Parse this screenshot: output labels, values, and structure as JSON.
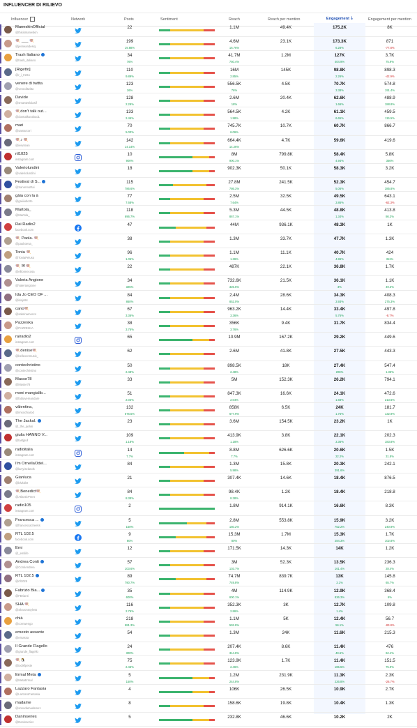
{
  "title": "INFLUENCER DI RILIEVO",
  "headers": {
    "influencer": "Influencer",
    "network": "Network",
    "posts": "Posts",
    "sentiment": "Sentiment",
    "reach": "Reach",
    "reach_per_mention": "Reach per mention",
    "engagement": "Engagement",
    "engagement_per_mention": "Engagement per mention"
  },
  "colors": {
    "positive": "#3cb46e",
    "neutral": "#f2c230",
    "negative": "#e5534b",
    "accent": "#1e4fb4",
    "up": "#1fa35a",
    "down": "#d03030"
  },
  "sort_indicator": "arrow-down-icon",
  "rows": [
    {
      "name": "ManeskinOfficial",
      "handle": "@thisismaneskin",
      "network": "twitter",
      "posts": "22",
      "posts_delta": "",
      "reach": "1.1M",
      "reach_delta": "",
      "rpm": "49.4K",
      "eng": "175.2K",
      "eng_delta": "",
      "epm": "8K",
      "epm_delta": "",
      "sent": [
        0.2,
        0.6,
        0.2
      ]
    },
    {
      "name": "🍭 ___ 🍭",
      "handle": "@jeimeandesiq",
      "network": "twitter",
      "posts": "199",
      "posts_delta": "19.88%",
      "reach": "4.6M",
      "reach_delta": "16.76%",
      "rpm": "23.1K",
      "eng": "173.3K",
      "eng_delta": "6.28%",
      "epm": "871",
      "epm_delta": "-77.8%",
      "sent": [
        0.2,
        0.6,
        0.2
      ]
    },
    {
      "name": "Trash Italiano",
      "handle": "@trash_italiano",
      "network": "twitter",
      "verified": true,
      "posts": "34",
      "posts_delta": "76%",
      "reach": "41.7M",
      "reach_delta": "750.4%",
      "rpm": "1.2M",
      "eng": "127K",
      "eng_delta": "404.9%",
      "epm": "3.7K",
      "epm_delta": "75.9%",
      "sent": [
        0.2,
        0.6,
        0.2
      ]
    },
    {
      "name": "[Rigetto]",
      "handle": "@r_i_tretto",
      "network": "twitter",
      "posts": "110",
      "posts_delta": "9.89%",
      "reach": "16M",
      "reach_delta": "2.85%",
      "rpm": "145K",
      "eng": "98.8K",
      "eng_delta": "2.26%",
      "epm": "898.3",
      "epm_delta": "-42.9%",
      "sent": [
        0.2,
        0.6,
        0.2
      ]
    },
    {
      "name": "venere di twitta",
      "handle": "@veneditwitta",
      "network": "twitter",
      "posts": "123",
      "posts_delta": "16%",
      "reach": "556.5K",
      "reach_delta": "76%",
      "rpm": "4.5K",
      "eng": "70.7K",
      "eng_delta": "3.38%",
      "epm": "574.8",
      "epm_delta": "191.4%",
      "sent": [
        0.2,
        0.6,
        0.2
      ]
    },
    {
      "name": "Davide",
      "handle": "@smartDelulasif",
      "network": "twitter",
      "posts": "128",
      "posts_delta": "2.29%",
      "reach": "2.6M",
      "reach_delta": "18%",
      "rpm": "20.4K",
      "eng": "62.6K",
      "eng_delta": "1.66%",
      "epm": "488.9",
      "epm_delta": "188.8%",
      "sent": [
        0.2,
        0.6,
        0.2
      ]
    },
    {
      "name": "🍭don't talk out...",
      "handle": "@donttalkoutloud1",
      "network": "twitter",
      "posts": "133",
      "posts_delta": "2.46%",
      "reach": "564.5K",
      "reach_delta": "1.98%",
      "rpm": "4.2K",
      "eng": "61.1K",
      "eng_delta": "6.65%",
      "epm": "459.5",
      "epm_delta": "115.5%",
      "sent": [
        0.2,
        0.6,
        0.2
      ]
    },
    {
      "name": "mari",
      "handle": "@samarcori",
      "network": "twitter",
      "posts": "70",
      "posts_delta": "5.00%",
      "reach": "745.7K",
      "reach_delta": "6.06%",
      "rpm": "10.7K",
      "eng": "60.7K",
      "eng_delta": "",
      "epm": "866.7",
      "epm_delta": "",
      "sent": [
        0.2,
        0.6,
        0.2
      ]
    },
    {
      "name": "🍭♪ 🍭",
      "handle": "@ieiwzean",
      "network": "twitter",
      "posts": "142",
      "posts_delta": "14.14%",
      "reach": "664.4K",
      "reach_delta": "14.26%",
      "rpm": "4.7K",
      "eng": "59.6K",
      "eng_delta": "",
      "epm": "419.6",
      "epm_delta": "",
      "sent": [
        0.2,
        0.6,
        0.2
      ]
    },
    {
      "name": "rtl1025",
      "handle": "instagram.com",
      "network": "instagram",
      "posts": "10",
      "posts_delta": "900%",
      "reach": "8M",
      "reach_delta": "900.1%",
      "rpm": "799.8K",
      "eng": "58.4K",
      "eng_delta": "4.94%",
      "epm": "5.8K",
      "epm_delta": "356%",
      "sent": [
        0.6,
        0.3,
        0.1
      ]
    },
    {
      "name": "Valeriolundini",
      "handle": "@valeriolundini",
      "network": "twitter",
      "posts": "18",
      "posts_delta": "",
      "reach": "902.3K",
      "reach_delta": "",
      "rpm": "50.1K",
      "eng": "58.3K",
      "eng_delta": "",
      "epm": "3.2K",
      "epm_delta": "",
      "sent": [
        0.6,
        0.3,
        0.1
      ]
    },
    {
      "name": "Festival di S...",
      "handle": "@SanremoRai",
      "network": "twitter",
      "verified": true,
      "posts": "115",
      "posts_delta": "786.6%",
      "reach": "27.8M",
      "reach_delta": "786.3%",
      "rpm": "241.5K",
      "eng": "52.3K",
      "eng_delta": "5.06%",
      "epm": "454.7",
      "epm_delta": "385.8%",
      "sent": [
        0.25,
        0.6,
        0.15
      ]
    },
    {
      "name": "gàia con la à",
      "handle": "@gaiiiiuborto",
      "network": "twitter",
      "posts": "77",
      "posts_delta": "7.68%",
      "reach": "2.5M",
      "reach_delta": "7.64%",
      "rpm": "32.5K",
      "eng": "49.5K",
      "eng_delta": "3.86%",
      "epm": "643.1",
      "epm_delta": "-62.3%",
      "sent": [
        0.2,
        0.6,
        0.2
      ]
    },
    {
      "name": "Martola_",
      "handle": "@Martola_",
      "network": "twitter",
      "posts": "118",
      "posts_delta": "696.7%",
      "reach": "5.3M",
      "reach_delta": "867.1%",
      "rpm": "44.5K",
      "eng": "48.8K",
      "eng_delta": "1.34%",
      "epm": "413.8",
      "epm_delta": "86.3%",
      "sent": [
        0.2,
        0.6,
        0.2
      ]
    },
    {
      "name": "Rai Radio2",
      "handle": "facebook.com",
      "network": "facebook",
      "posts": "47",
      "posts_delta": "",
      "reach": "44M",
      "reach_delta": "",
      "rpm": "936.1K",
      "eng": "48.3K",
      "eng_delta": "",
      "epm": "1K",
      "epm_delta": "",
      "sent": [
        0.3,
        0.55,
        0.15
      ]
    },
    {
      "name": "🍭 Paola. 🍭",
      "handle": "@paoboena_",
      "network": "twitter",
      "posts": "38",
      "posts_delta": "",
      "reach": "1.3M",
      "reach_delta": "",
      "rpm": "33.7K",
      "eng": "47.7K",
      "eng_delta": "",
      "epm": "1.3K",
      "epm_delta": "",
      "sent": [
        0.2,
        0.6,
        0.2
      ]
    },
    {
      "name": "Tonia 🍭",
      "handle": "@ToniaPeluso",
      "network": "twitter",
      "posts": "96",
      "posts_delta": "1.05%",
      "reach": "1.1M",
      "reach_delta": "1.36%",
      "rpm": "11.1K",
      "eng": "40.7K",
      "eng_delta": "4.96%",
      "epm": "424",
      "epm_delta": "311%",
      "sent": [
        0.2,
        0.6,
        0.2
      ]
    },
    {
      "name": "🍭 ✉ 🍭",
      "handle": "@ellionnecosa",
      "network": "twitter",
      "posts": "22",
      "posts_delta": "",
      "reach": "487K",
      "reach_delta": "",
      "rpm": "22.1K",
      "eng": "36.8K",
      "eng_delta": "",
      "epm": "1.7K",
      "epm_delta": "",
      "sent": [
        0.2,
        0.6,
        0.2
      ]
    },
    {
      "name": "Valeria Angione",
      "handle": "@Valeriangione",
      "network": "twitter",
      "posts": "34",
      "posts_delta": "325%",
      "reach": "732.6K",
      "reach_delta": "325.6%",
      "rpm": "21.5K",
      "eng": "36.1K",
      "eng_delta": "3%",
      "epm": "1.1K",
      "epm_delta": "49.3%",
      "sent": [
        0.2,
        0.6,
        0.2
      ]
    },
    {
      "name": "Ida Jo CEO OF ...",
      "handle": "@idajo94",
      "network": "twitter",
      "posts": "84",
      "posts_delta": "860%",
      "reach": "2.4M",
      "reach_delta": "852.0%",
      "rpm": "28.6K",
      "eng": "34.3K",
      "eng_delta": "3.93%",
      "epm": "408.3",
      "epm_delta": "275.3%",
      "sent": [
        0.2,
        0.6,
        0.2
      ]
    },
    {
      "name": "cano🍭",
      "handle": "@sabrinamocco",
      "network": "twitter",
      "posts": "67",
      "posts_delta": "3.36%",
      "reach": "963.2K",
      "reach_delta": "3.36%",
      "rpm": "14.4K",
      "eng": "33.4K",
      "eng_delta": "5.76%",
      "epm": "497.8",
      "epm_delta": "-8.7%",
      "sent": [
        0.2,
        0.6,
        0.2
      ]
    },
    {
      "name": "Pazzeska",
      "handle": "@PAZZESKA",
      "network": "twitter",
      "posts": "38",
      "posts_delta": "3.76%",
      "reach": "356K",
      "reach_delta": "3.76%",
      "rpm": "9.4K",
      "eng": "31.7K",
      "eng_delta": "",
      "epm": "834.4",
      "epm_delta": "",
      "sent": [
        0.2,
        0.6,
        0.2
      ]
    },
    {
      "name": "rairadio2",
      "handle": "instagram.com",
      "network": "instagram",
      "posts": "65",
      "posts_delta": "",
      "reach": "10.9M",
      "reach_delta": "",
      "rpm": "167.2K",
      "eng": "29.2K",
      "eng_delta": "",
      "epm": "449.6",
      "epm_delta": "",
      "sent": [
        0.6,
        0.3,
        0.1
      ]
    },
    {
      "name": "🍭denise🍭",
      "handle": "@bellexenmusic_",
      "network": "twitter",
      "posts": "62",
      "posts_delta": "",
      "reach": "2.6M",
      "reach_delta": "",
      "rpm": "41.8K",
      "eng": "27.5K",
      "eng_delta": "",
      "epm": "443.3",
      "epm_delta": "",
      "sent": [
        0.2,
        0.6,
        0.2
      ]
    },
    {
      "name": "contechristino",
      "handle": "@contechristino",
      "network": "twitter",
      "posts": "50",
      "posts_delta": "2.48%",
      "reach": "898.5K",
      "reach_delta": "2.48%",
      "rpm": "18K",
      "eng": "27.4K",
      "eng_delta": "206%",
      "epm": "547.4",
      "epm_delta": "1.36%",
      "sent": [
        0.2,
        0.6,
        0.2
      ]
    },
    {
      "name": "Masse78",
      "handle": "@Masse78",
      "network": "twitter",
      "posts": "33",
      "posts_delta": "",
      "reach": "5M",
      "reach_delta": "",
      "rpm": "152.3K",
      "eng": "26.2K",
      "eng_delta": "",
      "epm": "794.1",
      "epm_delta": "",
      "sent": [
        0.2,
        0.6,
        0.2
      ]
    },
    {
      "name": "moni mangialib...",
      "handle": "@fattiavereandare",
      "network": "twitter",
      "posts": "51",
      "posts_delta": "2.04%",
      "reach": "847.3K",
      "reach_delta": "2.04%",
      "rpm": "16.6K",
      "eng": "24.1K",
      "eng_delta": "1.68%",
      "epm": "472.6",
      "epm_delta": "213.6%",
      "sent": [
        0.2,
        0.6,
        0.2
      ]
    },
    {
      "name": "vàlentina,",
      "handle": "@imsochiarod",
      "network": "twitter",
      "posts": "132",
      "posts_delta": "676.5%",
      "reach": "858K",
      "reach_delta": "677.9%",
      "rpm": "6.5K",
      "eng": "24K",
      "eng_delta": "1.76%",
      "epm": "181.7",
      "epm_delta": "132.9%",
      "sent": [
        0.2,
        0.6,
        0.2
      ]
    },
    {
      "name": "The Jackal.",
      "handle": "@_the_jackal",
      "network": "twitter",
      "verified": true,
      "posts": "23",
      "posts_delta": "",
      "reach": "3.6M",
      "reach_delta": "",
      "rpm": "154.5K",
      "eng": "23.2K",
      "eng_delta": "",
      "epm": "1K",
      "epm_delta": "",
      "sent": [
        0.2,
        0.6,
        0.2
      ]
    },
    {
      "name": "giulia HANNO V...",
      "handle": "@tastjpull",
      "network": "twitter",
      "posts": "109",
      "posts_delta": "1.18%",
      "reach": "413.9K",
      "reach_delta": "1.18%",
      "rpm": "3.8K",
      "eng": "22.1K",
      "eng_delta": "3.36%",
      "epm": "202.3",
      "epm_delta": "183.8%",
      "sent": [
        0.2,
        0.6,
        0.2
      ]
    },
    {
      "name": "radioitalia",
      "handle": "instagram.com",
      "network": "instagram",
      "posts": "14",
      "posts_delta": "7.7%",
      "reach": "8.8M",
      "reach_delta": "7.7%",
      "rpm": "626.6K",
      "eng": "20.6K",
      "eng_delta": "22.2%",
      "epm": "1.5K",
      "epm_delta": "31.8%",
      "sent": [
        0.45,
        0.45,
        0.1
      ]
    },
    {
      "name": "I'm OrnellaOdel...",
      "handle": "@larryiselands",
      "network": "twitter",
      "posts": "84",
      "posts_delta": "",
      "reach": "1.3M",
      "reach_delta": "5.98%",
      "rpm": "15.8K",
      "eng": "20.3K",
      "eng_delta": "391.6%",
      "epm": "242.1",
      "epm_delta": "",
      "sent": [
        0.2,
        0.6,
        0.2
      ]
    },
    {
      "name": "Gianluca",
      "handle": "@blvkblnt",
      "network": "twitter",
      "posts": "21",
      "posts_delta": "",
      "reach": "307.4K",
      "reach_delta": "",
      "rpm": "14.6K",
      "eng": "18.4K",
      "eng_delta": "",
      "epm": "876.5",
      "epm_delta": "",
      "sent": [
        0.2,
        0.6,
        0.2
      ]
    },
    {
      "name": "🍭Benedict🍭",
      "handle": "@AtlanticPmet",
      "network": "twitter",
      "posts": "84",
      "posts_delta": "8.38%",
      "reach": "98.4K",
      "reach_delta": "8.38%",
      "rpm": "1.2K",
      "eng": "18.4K",
      "eng_delta": "",
      "epm": "218.8",
      "epm_delta": "",
      "sent": [
        0.2,
        0.6,
        0.2
      ]
    },
    {
      "name": "radio105",
      "handle": "instagram.com",
      "network": "instagram",
      "posts": "2",
      "posts_delta": "",
      "reach": "1.8M",
      "reach_delta": "",
      "rpm": "914.1K",
      "eng": "16.6K",
      "eng_delta": "",
      "epm": "8.3K",
      "epm_delta": "",
      "sent": [
        1,
        0,
        0
      ]
    },
    {
      "name": "Francesca ...",
      "handle": "@francescacheeks",
      "network": "twitter",
      "verified": true,
      "posts": "5",
      "posts_delta": "150%",
      "reach": "2.8M",
      "reach_delta": "150.2%",
      "rpm": "553.8K",
      "eng": "15.9K",
      "eng_delta": "752.2%",
      "epm": "3.2K",
      "epm_delta": "240.9%",
      "sent": [
        0.5,
        0.35,
        0.15
      ]
    },
    {
      "name": "RTL 102.5",
      "handle": "facebook.com",
      "network": "facebook",
      "posts": "9",
      "posts_delta": "80%",
      "reach": "15.3M",
      "reach_delta": "80%",
      "rpm": "1.7M",
      "eng": "15.3K",
      "eng_delta": "284.3%",
      "epm": "1.7K",
      "epm_delta": "102.8%",
      "sent": [
        0.3,
        0.55,
        0.15
      ]
    },
    {
      "name": "Emi",
      "handle": "@_emilife",
      "network": "twitter",
      "posts": "12",
      "posts_delta": "",
      "reach": "171.5K",
      "reach_delta": "",
      "rpm": "14.3K",
      "eng": "14K",
      "eng_delta": "",
      "epm": "1.2K",
      "epm_delta": "",
      "sent": [
        0.2,
        0.6,
        0.2
      ]
    },
    {
      "name": "Andrea Conti",
      "handle": "@ContiAndrea",
      "network": "twitter",
      "verified": true,
      "posts": "57",
      "posts_delta": "103.6%",
      "reach": "3M",
      "reach_delta": "103.7%",
      "rpm": "52.3K",
      "eng": "13.5K",
      "eng_delta": "161.4%",
      "epm": "236.3",
      "epm_delta": "28.4%",
      "sent": [
        0.2,
        0.6,
        0.2
      ]
    },
    {
      "name": "RTL 102.5",
      "handle": "@rtl1025",
      "network": "twitter",
      "verified": true,
      "posts": "89",
      "posts_delta": "790.7%",
      "reach": "74.7M",
      "reach_delta": "749.8%",
      "rpm": "839.7K",
      "eng": "13K",
      "eng_delta": "3.1%",
      "epm": "145.8",
      "epm_delta": "65.7%",
      "sent": [
        0.3,
        0.55,
        0.15
      ]
    },
    {
      "name": "Fabrizio Bia...",
      "handle": "@FBrianti",
      "network": "twitter",
      "verified": true,
      "posts": "35",
      "posts_delta": "600%",
      "reach": "4M",
      "reach_delta": "600.1%",
      "rpm": "114.9K",
      "eng": "12.9K",
      "eng_delta": "836.3%",
      "epm": "368.4",
      "epm_delta": "6%",
      "sent": [
        0.2,
        0.6,
        0.2
      ]
    },
    {
      "name": "SHA 🍭",
      "handle": "@SharonStyless",
      "network": "twitter",
      "posts": "116",
      "posts_delta": "2.76%",
      "reach": "352.3K",
      "reach_delta": "2.86%",
      "rpm": "3K",
      "eng": "12.7K",
      "eng_delta": "1.4%",
      "epm": "109.8",
      "epm_delta": "",
      "sent": [
        0.2,
        0.6,
        0.2
      ]
    },
    {
      "name": "chià",
      "handle": "@cornwengo",
      "network": "twitter",
      "posts": "218",
      "posts_delta": "581.3%",
      "reach": "1.1M",
      "reach_delta": "592.8%",
      "rpm": "5K",
      "eng": "12.4K",
      "eng_delta": "56.1%",
      "epm": "56.7",
      "epm_delta": "-83.8%",
      "sent": [
        0.2,
        0.6,
        0.2
      ]
    },
    {
      "name": "ernesto assante",
      "handle": "@ernassa",
      "network": "twitter",
      "posts": "54",
      "posts_delta": "",
      "reach": "1.3M",
      "reach_delta": "",
      "rpm": "24K",
      "eng": "11.6K",
      "eng_delta": "",
      "epm": "215.3",
      "epm_delta": "",
      "sent": [
        0.2,
        0.6,
        0.2
      ]
    },
    {
      "name": "Il Grande Flagello",
      "handle": "@grande_flagello",
      "network": "twitter",
      "posts": "24",
      "posts_delta": "300%",
      "reach": "207.4K",
      "reach_delta": "314.8%",
      "rpm": "8.6K",
      "eng": "11.4K",
      "eng_delta": "49.6%",
      "epm": "476",
      "epm_delta": "62.4%",
      "sent": [
        0.2,
        0.6,
        0.2
      ]
    },
    {
      "name": "🍭🐧",
      "handle": "@iodisfpeste",
      "network": "twitter",
      "posts": "75",
      "posts_delta": "2.46%",
      "reach": "123.9K",
      "reach_delta": "2.46%",
      "rpm": "1.7K",
      "eng": "11.4K",
      "eng_delta": "185.5%",
      "epm": "151.5",
      "epm_delta": "75.9%",
      "sent": [
        0.2,
        0.6,
        0.2
      ]
    },
    {
      "name": "Ermal Meta",
      "handle": "@MetaErmal",
      "network": "twitter",
      "verified": true,
      "posts": "5",
      "posts_delta": "150%",
      "reach": "1.2M",
      "reach_delta": "244.8%",
      "rpm": "231.9K",
      "eng": "11.3K",
      "eng_delta": "226.8%",
      "epm": "2.3K",
      "epm_delta": "-26.7%",
      "sent": [
        0.6,
        0.3,
        0.1
      ]
    },
    {
      "name": "Lazzaro Fantasia",
      "handle": "@LazzaroFantasia",
      "network": "twitter",
      "posts": "4",
      "posts_delta": "",
      "reach": "106K",
      "reach_delta": "",
      "rpm": "26.5K",
      "eng": "10.9K",
      "eng_delta": "",
      "epm": "2.7K",
      "epm_delta": "",
      "sent": [
        0.6,
        0.3,
        0.1
      ]
    },
    {
      "name": "madame",
      "handle": "@sonodamadame1",
      "network": "twitter",
      "posts": "8",
      "posts_delta": "",
      "reach": "158.6K",
      "reach_delta": "",
      "rpm": "19.8K",
      "eng": "10.4K",
      "eng_delta": "",
      "epm": "1.3K",
      "epm_delta": "",
      "sent": [
        0.2,
        0.6,
        0.2
      ]
    },
    {
      "name": "Daninseries",
      "handle": "@Daninseries",
      "network": "twitter",
      "posts": "5",
      "posts_delta": "",
      "reach": "232.8K",
      "reach_delta": "",
      "rpm": "46.6K",
      "eng": "10.2K",
      "eng_delta": "",
      "epm": "2K",
      "epm_delta": "",
      "sent": [
        0.6,
        0.3,
        0.1
      ]
    }
  ]
}
